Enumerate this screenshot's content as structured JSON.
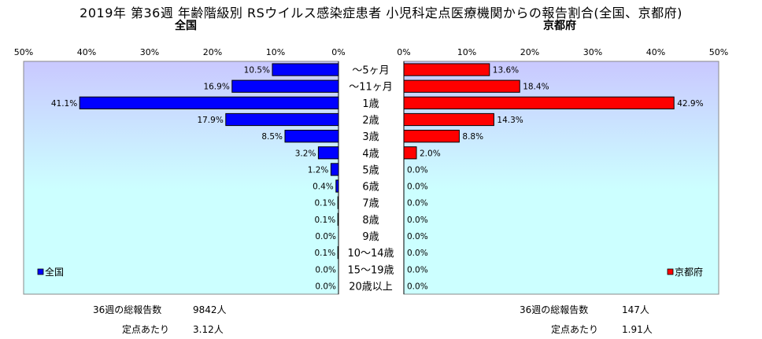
{
  "title": "2019年 第36週 年齢階級別 RSウイルス感染症患者 小児科定点医療機関からの報告割合(全国、京都府)",
  "chart_data": [
    {
      "type": "bar",
      "orientation": "horizontal",
      "direction": "right-to-left",
      "title": "全国",
      "series": [
        {
          "name": "全国",
          "color": "#0000ff",
          "values": [
            10.5,
            16.9,
            41.1,
            17.9,
            8.5,
            3.2,
            1.2,
            0.4,
            0.1,
            0.1,
            0.0,
            0.1,
            0.0,
            0.0
          ],
          "labels": [
            "10.5%",
            "16.9%",
            "41.1%",
            "17.9%",
            "8.5%",
            "3.2%",
            "1.2%",
            "0.4%",
            "0.1%",
            "0.1%",
            "0.0%",
            "0.1%",
            "0.0%",
            "0.0%"
          ]
        }
      ],
      "xlim": [
        0,
        50
      ],
      "ticks": [
        "0%",
        "10%",
        "20%",
        "30%",
        "40%",
        "50%"
      ],
      "legend": "bottom-left",
      "background": "#ccffff"
    },
    {
      "type": "bar",
      "orientation": "horizontal",
      "direction": "left-to-right",
      "title": "京都府",
      "series": [
        {
          "name": "京都府",
          "color": "#ff0000",
          "values": [
            13.6,
            18.4,
            42.9,
            14.3,
            8.8,
            2.0,
            0.0,
            0.0,
            0.0,
            0.0,
            0.0,
            0.0,
            0.0,
            0.0
          ],
          "labels": [
            "13.6%",
            "18.4%",
            "42.9%",
            "14.3%",
            "8.8%",
            "2.0%",
            "0.0%",
            "0.0%",
            "0.0%",
            "0.0%",
            "0.0%",
            "0.0%",
            "0.0%",
            "0.0%"
          ]
        }
      ],
      "xlim": [
        0,
        50
      ],
      "ticks": [
        "0%",
        "10%",
        "20%",
        "30%",
        "40%",
        "50%"
      ],
      "legend": "bottom-right",
      "background": "#ccffff"
    }
  ],
  "categories": [
    "～5ヶ月",
    "～11ヶ月",
    "1歳",
    "2歳",
    "3歳",
    "4歳",
    "5歳",
    "6歳",
    "7歳",
    "8歳",
    "9歳",
    "10～14歳",
    "15～19歳",
    "20歳以上"
  ],
  "footer": {
    "national_total_label": "36週の総報告数",
    "national_total_value": "9842人",
    "national_per_label": "定点あたり",
    "national_per_value": "3.12人",
    "kyoto_total_label": "36週の総報告数",
    "kyoto_total_value": "147人",
    "kyoto_per_label": "定点あたり",
    "kyoto_per_value": "1.91人"
  }
}
